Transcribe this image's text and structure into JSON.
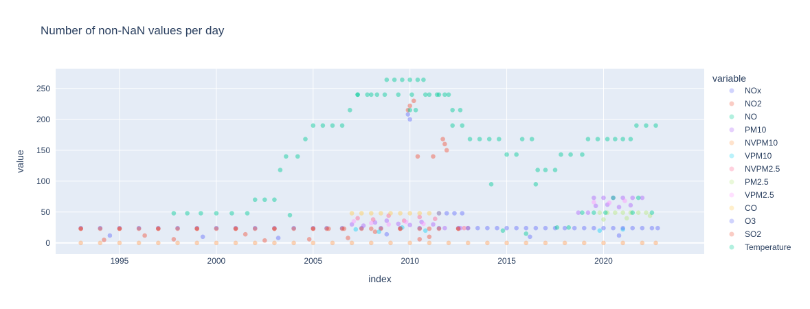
{
  "chart_data": {
    "type": "scatter",
    "title": "Number of non-NaN values per day",
    "xlabel": "index",
    "ylabel": "value",
    "xlim": [
      1991.7,
      2025.2
    ],
    "ylim": [
      -18,
      282
    ],
    "x_ticks": [
      1995,
      2000,
      2005,
      2010,
      2015,
      2020
    ],
    "y_ticks": [
      0,
      50,
      100,
      150,
      200,
      250
    ],
    "grid": true,
    "legend_title": "variable",
    "legend_position": "right",
    "series": [
      {
        "name": "NOx",
        "color": "#636efa",
        "points": [
          [
            1993.0,
            24
          ],
          [
            1994.0,
            24
          ],
          [
            1995.0,
            24
          ],
          [
            1996.0,
            24
          ],
          [
            1997.0,
            24
          ],
          [
            1998.0,
            24
          ],
          [
            1999.0,
            24
          ],
          [
            2000.0,
            24
          ],
          [
            2001.0,
            24
          ],
          [
            2002.0,
            24
          ],
          [
            2003.0,
            24
          ],
          [
            2004.0,
            24
          ],
          [
            2005.0,
            24
          ],
          [
            2005.7,
            24
          ],
          [
            2006.5,
            24
          ],
          [
            2007.5,
            24
          ],
          [
            2008.5,
            24
          ],
          [
            2009.5,
            24
          ],
          [
            2010.5,
            24
          ],
          [
            2011.5,
            24
          ],
          [
            2012.5,
            24
          ],
          [
            2013.5,
            24
          ],
          [
            2014.5,
            24
          ],
          [
            2015.5,
            24
          ],
          [
            2016.5,
            24
          ],
          [
            2017.5,
            24
          ],
          [
            2018.5,
            24
          ],
          [
            2019.5,
            24
          ],
          [
            2020.5,
            24
          ],
          [
            2021.5,
            24
          ],
          [
            2022.5,
            24
          ],
          [
            2009.9,
            208
          ],
          [
            2010.0,
            200
          ],
          [
            1994.5,
            12
          ],
          [
            1999.3,
            10
          ],
          [
            2003.2,
            8
          ],
          [
            2008.8,
            14
          ],
          [
            2016.2,
            10
          ],
          [
            2020.8,
            12
          ]
        ]
      },
      {
        "name": "NO2",
        "color": "#ef553b",
        "points": [
          [
            1993.0,
            23
          ],
          [
            1994.0,
            23
          ],
          [
            1995.0,
            23
          ],
          [
            1996.0,
            23
          ],
          [
            1997.0,
            23
          ],
          [
            1998.0,
            23
          ],
          [
            1999.0,
            23
          ],
          [
            2000.0,
            23
          ],
          [
            2001.0,
            23
          ],
          [
            2002.0,
            23
          ],
          [
            2003.0,
            23
          ],
          [
            2004.0,
            23
          ],
          [
            2005.0,
            23
          ],
          [
            2005.7,
            23
          ],
          [
            2006.6,
            23
          ],
          [
            2007.5,
            23
          ],
          [
            2008.5,
            23
          ],
          [
            2009.5,
            23
          ],
          [
            2010.5,
            23
          ],
          [
            2011.5,
            23
          ],
          [
            2012.5,
            23
          ],
          [
            2009.9,
            215
          ],
          [
            2010.0,
            222
          ],
          [
            2011.7,
            168
          ],
          [
            2011.8,
            160
          ],
          [
            2011.9,
            150
          ],
          [
            2010.2,
            230
          ],
          [
            2010.4,
            140
          ],
          [
            2011.2,
            140
          ],
          [
            1996.3,
            12
          ],
          [
            2001.5,
            14
          ],
          [
            2004.8,
            6
          ],
          [
            2008.2,
            18
          ],
          [
            2011.0,
            10
          ]
        ]
      },
      {
        "name": "NO",
        "color": "#00cc96",
        "points": [
          [
            1997.8,
            48
          ],
          [
            1998.5,
            48
          ],
          [
            1999.2,
            48
          ],
          [
            2000.0,
            48
          ],
          [
            2000.8,
            48
          ],
          [
            2001.6,
            48
          ],
          [
            2002.0,
            70
          ],
          [
            2002.5,
            70
          ],
          [
            2003.0,
            70
          ],
          [
            2003.3,
            118
          ],
          [
            2003.6,
            140
          ],
          [
            2003.8,
            45
          ],
          [
            2004.2,
            140
          ],
          [
            2004.6,
            168
          ],
          [
            2005.0,
            190
          ],
          [
            2005.5,
            190
          ],
          [
            2006.0,
            190
          ],
          [
            2006.5,
            190
          ],
          [
            2006.9,
            215
          ],
          [
            2007.3,
            240
          ],
          [
            2007.8,
            240
          ],
          [
            2008.3,
            240
          ],
          [
            2008.8,
            264
          ],
          [
            2009.2,
            264
          ],
          [
            2009.6,
            264
          ],
          [
            2010.0,
            264
          ],
          [
            2010.4,
            264
          ],
          [
            2010.7,
            264
          ],
          [
            2011.0,
            240
          ],
          [
            2011.4,
            240
          ],
          [
            2011.8,
            240
          ],
          [
            2012.2,
            215
          ],
          [
            2012.6,
            215
          ],
          [
            2012.2,
            190
          ],
          [
            2012.7,
            190
          ],
          [
            2013.1,
            168
          ],
          [
            2013.6,
            168
          ],
          [
            2014.1,
            168
          ],
          [
            2014.6,
            168
          ],
          [
            2015.0,
            143
          ],
          [
            2015.5,
            143
          ],
          [
            2015.8,
            168
          ],
          [
            2016.3,
            168
          ],
          [
            2016.6,
            118
          ],
          [
            2017.0,
            118
          ],
          [
            2017.5,
            118
          ],
          [
            2017.8,
            143
          ],
          [
            2018.3,
            143
          ],
          [
            2018.9,
            143
          ],
          [
            2019.2,
            168
          ],
          [
            2019.7,
            168
          ],
          [
            2020.2,
            168
          ],
          [
            2020.6,
            168
          ],
          [
            2021.0,
            168
          ],
          [
            2021.4,
            168
          ],
          [
            2021.7,
            190
          ],
          [
            2022.2,
            190
          ],
          [
            2022.7,
            190
          ],
          [
            2010.0,
            215
          ],
          [
            2010.3,
            215
          ],
          [
            2014.2,
            95
          ],
          [
            2016.5,
            95
          ]
        ]
      },
      {
        "name": "PM10",
        "color": "#ab63fa",
        "points": [
          [
            2007.0,
            30
          ],
          [
            2007.6,
            28
          ],
          [
            2008.2,
            33
          ],
          [
            2008.8,
            36
          ],
          [
            2009.4,
            31
          ],
          [
            2010.0,
            29
          ],
          [
            2010.6,
            34
          ],
          [
            2011.2,
            30
          ],
          [
            2018.7,
            49
          ],
          [
            2019.2,
            49
          ],
          [
            2019.5,
            73
          ],
          [
            2020.0,
            73
          ],
          [
            2020.5,
            73
          ],
          [
            2021.0,
            73
          ],
          [
            2021.5,
            73
          ],
          [
            2022.0,
            73
          ],
          [
            2019.6,
            60
          ],
          [
            2020.2,
            62
          ],
          [
            2020.8,
            58
          ],
          [
            2021.4,
            61
          ],
          [
            2011.8,
            24
          ],
          [
            2012.6,
            24
          ]
        ]
      },
      {
        "name": "NVPM10",
        "color": "#ffa15a",
        "points": [
          [
            1993.0,
            0
          ],
          [
            1994.0,
            0
          ],
          [
            1995.0,
            0
          ],
          [
            1996.0,
            0
          ],
          [
            1997.0,
            0
          ],
          [
            1998.0,
            0
          ],
          [
            1999.0,
            0
          ],
          [
            2000.0,
            0
          ],
          [
            2001.0,
            0
          ],
          [
            2002.0,
            0
          ],
          [
            2003.0,
            0
          ],
          [
            2004.0,
            0
          ],
          [
            2005.0,
            0
          ],
          [
            2006.0,
            0
          ],
          [
            2007.0,
            0
          ],
          [
            2008.0,
            0
          ],
          [
            2009.0,
            0
          ],
          [
            2010.0,
            0
          ],
          [
            2011.0,
            0
          ],
          [
            2012.0,
            0
          ],
          [
            2013.0,
            0
          ],
          [
            2014.0,
            0
          ],
          [
            2015.0,
            0
          ],
          [
            2016.0,
            0
          ],
          [
            2017.0,
            0
          ],
          [
            2018.0,
            0
          ],
          [
            2019.0,
            0
          ],
          [
            2020.0,
            0
          ],
          [
            2021.0,
            0
          ],
          [
            2022.0,
            0
          ],
          [
            2022.7,
            0
          ]
        ]
      },
      {
        "name": "VPM10",
        "color": "#19d3f3",
        "points": [
          [
            2007.2,
            22
          ],
          [
            2008.4,
            18
          ],
          [
            2009.6,
            25
          ],
          [
            2010.8,
            20
          ],
          [
            2019.8,
            20
          ],
          [
            2021.0,
            22
          ]
        ]
      },
      {
        "name": "NVPM2.5",
        "color": "#ff6692",
        "points": [
          [
            2007.3,
            40
          ],
          [
            2008.1,
            38
          ],
          [
            2008.9,
            44
          ],
          [
            2009.7,
            36
          ],
          [
            2010.5,
            42
          ],
          [
            2011.3,
            39
          ],
          [
            2012.8,
            24
          ],
          [
            2013.0,
            24
          ]
        ]
      },
      {
        "name": "PM2.5",
        "color": "#b6e880",
        "points": [
          [
            2019.8,
            49
          ],
          [
            2020.2,
            49
          ],
          [
            2020.6,
            49
          ],
          [
            2021.0,
            49
          ],
          [
            2021.4,
            49
          ],
          [
            2021.8,
            49
          ],
          [
            2022.2,
            49
          ],
          [
            2020.0,
            38
          ],
          [
            2021.2,
            40
          ],
          [
            2022.4,
            44
          ]
        ]
      },
      {
        "name": "VPM2.5",
        "color": "#ff97ff",
        "points": [
          [
            2007.1,
            35
          ],
          [
            2008.0,
            32
          ],
          [
            2008.9,
            30
          ],
          [
            2009.8,
            34
          ],
          [
            2010.7,
            31
          ],
          [
            2019.5,
            66
          ],
          [
            2020.3,
            65
          ],
          [
            2021.1,
            68
          ]
        ]
      },
      {
        "name": "CO",
        "color": "#fecb52",
        "points": [
          [
            2007.0,
            48
          ],
          [
            2007.5,
            48
          ],
          [
            2008.0,
            48
          ],
          [
            2008.5,
            48
          ],
          [
            2009.0,
            48
          ],
          [
            2009.5,
            48
          ],
          [
            2010.0,
            48
          ],
          [
            2010.5,
            48
          ],
          [
            2011.0,
            48
          ],
          [
            2011.5,
            48
          ]
        ]
      },
      {
        "name": "O3",
        "color": "#636efa",
        "points": [
          [
            2011.5,
            48
          ],
          [
            2011.9,
            48
          ],
          [
            2012.3,
            48
          ],
          [
            2012.7,
            48
          ],
          [
            2013.0,
            24
          ],
          [
            2014.0,
            24
          ],
          [
            2015.0,
            24
          ],
          [
            2016.0,
            24
          ],
          [
            2017.0,
            24
          ],
          [
            2018.0,
            24
          ],
          [
            2019.0,
            24
          ],
          [
            2020.0,
            24
          ],
          [
            2021.0,
            24
          ],
          [
            2022.0,
            24
          ],
          [
            2022.8,
            24
          ]
        ]
      },
      {
        "name": "SO2",
        "color": "#ef553b",
        "points": [
          [
            1993.0,
            23
          ],
          [
            1995.0,
            23
          ],
          [
            1997.0,
            23
          ],
          [
            1999.0,
            23
          ],
          [
            2001.0,
            23
          ],
          [
            2003.0,
            23
          ],
          [
            2005.0,
            23
          ],
          [
            2005.8,
            23
          ],
          [
            2006.5,
            23
          ],
          [
            2008.0,
            23
          ],
          [
            2009.5,
            23
          ],
          [
            2011.0,
            23
          ],
          [
            2012.5,
            23
          ],
          [
            1994.2,
            5
          ],
          [
            1997.8,
            6
          ],
          [
            2002.5,
            4
          ],
          [
            2006.8,
            8
          ],
          [
            2010.5,
            6
          ]
        ]
      },
      {
        "name": "Temperature",
        "color": "#00cc96",
        "points": [
          [
            2007.3,
            240
          ],
          [
            2008.0,
            240
          ],
          [
            2008.7,
            240
          ],
          [
            2009.4,
            240
          ],
          [
            2010.1,
            240
          ],
          [
            2010.8,
            240
          ],
          [
            2011.5,
            240
          ],
          [
            2012.0,
            240
          ],
          [
            2018.9,
            49
          ],
          [
            2019.5,
            49
          ],
          [
            2020.1,
            49
          ],
          [
            2021.5,
            49
          ],
          [
            2022.5,
            49
          ],
          [
            2017.6,
            25
          ],
          [
            2018.2,
            25
          ],
          [
            2020.5,
            73
          ],
          [
            2021.8,
            73
          ],
          [
            2016.0,
            15
          ],
          [
            2014.8,
            20
          ]
        ]
      }
    ]
  }
}
